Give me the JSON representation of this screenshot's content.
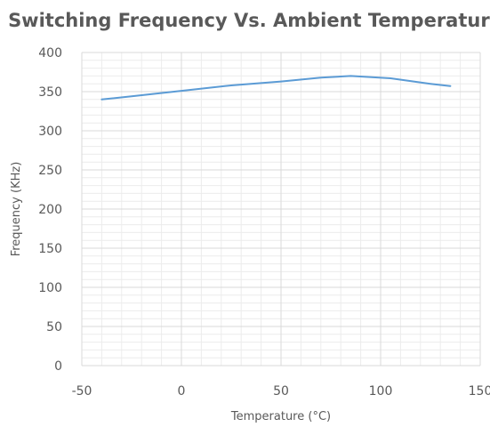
{
  "chart_data": {
    "type": "line",
    "title": "Switching Frequency Vs. Ambient Temperature",
    "xlabel": "Temperature (°C)",
    "ylabel": "Frequency (KHz)",
    "xlim": [
      -50,
      150
    ],
    "ylim": [
      0,
      400
    ],
    "x_ticks": [
      -50,
      0,
      50,
      100,
      150
    ],
    "y_ticks": [
      0,
      50,
      100,
      150,
      200,
      250,
      300,
      350,
      400
    ],
    "grid": true,
    "legend": "none",
    "series": [
      {
        "color": "#5b9bd5",
        "x": [
          -40,
          -25,
          0,
          25,
          50,
          70,
          85,
          105,
          125,
          135
        ],
        "y": [
          340,
          344,
          351,
          358,
          363,
          368,
          370,
          367,
          360,
          357
        ]
      }
    ]
  }
}
